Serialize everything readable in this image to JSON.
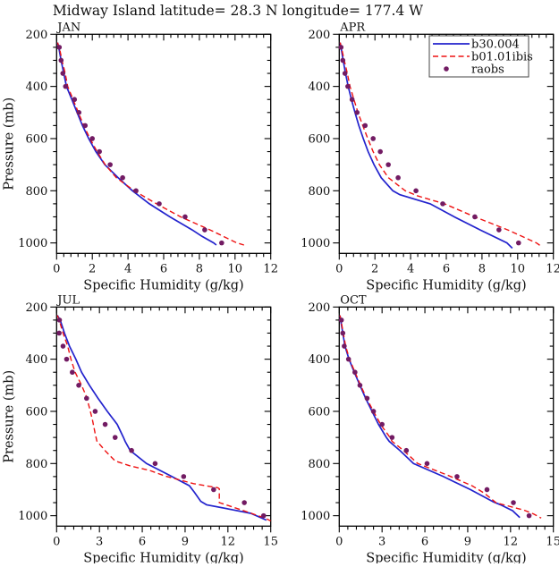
{
  "title": "Midway Island  latitude= 28.3 N longitude= 177.4 W",
  "colors": {
    "model_b30": "#2323cd",
    "model_b01": "#ee1212",
    "raobs": "#721b63",
    "frame": "#000000"
  },
  "legend": {
    "position": "top-right of APR panel",
    "entries": [
      {
        "label": "b30.004",
        "style": "solid-line",
        "color": "#2323cd"
      },
      {
        "label": "b01.01ibis",
        "style": "dashed-line",
        "color": "#ee1212"
      },
      {
        "label": "raobs",
        "style": "dot",
        "color": "#721b63"
      }
    ]
  },
  "chart_data": [
    {
      "type": "line",
      "panel": "JAN",
      "xlabel": "Specific Humidity (g/kg)",
      "ylabel": "Pressure (mb)",
      "xlim": [
        0,
        12
      ],
      "xticks": [
        0,
        2,
        4,
        6,
        8,
        10,
        12
      ],
      "x_minor_step": 0.4,
      "ylim": [
        200,
        1040
      ],
      "yticks": [
        200,
        400,
        600,
        800,
        1000
      ],
      "y_minor_step": 50,
      "y_axis_inverted": true,
      "grid": false,
      "series": [
        {
          "name": "b30.004",
          "type": "line",
          "style": "solid",
          "color": "#2323cd",
          "points": [
            [
              0.05,
              232
            ],
            [
              0.12,
              250
            ],
            [
              0.25,
              300
            ],
            [
              0.4,
              350
            ],
            [
              0.55,
              400
            ],
            [
              0.85,
              450
            ],
            [
              1.15,
              500
            ],
            [
              1.45,
              550
            ],
            [
              1.8,
              600
            ],
            [
              2.2,
              650
            ],
            [
              2.7,
              700
            ],
            [
              3.45,
              750
            ],
            [
              4.25,
              800
            ],
            [
              5.2,
              850
            ],
            [
              6.35,
              900
            ],
            [
              7.6,
              950
            ],
            [
              8.15,
              975
            ],
            [
              8.8,
              1000
            ],
            [
              8.95,
              1008
            ]
          ]
        },
        {
          "name": "b01.01ibis",
          "type": "line",
          "style": "dashed",
          "color": "#ee1212",
          "points": [
            [
              0.05,
              232
            ],
            [
              0.15,
              250
            ],
            [
              0.3,
              300
            ],
            [
              0.48,
              350
            ],
            [
              0.62,
              400
            ],
            [
              0.92,
              450
            ],
            [
              1.22,
              500
            ],
            [
              1.52,
              550
            ],
            [
              1.87,
              600
            ],
            [
              2.27,
              650
            ],
            [
              2.72,
              700
            ],
            [
              3.35,
              750
            ],
            [
              4.35,
              800
            ],
            [
              5.6,
              850
            ],
            [
              6.95,
              900
            ],
            [
              8.6,
              950
            ],
            [
              10.1,
              1000
            ],
            [
              10.5,
              1008
            ]
          ]
        },
        {
          "name": "raobs",
          "type": "scatter",
          "style": "dots",
          "color": "#721b63",
          "points": [
            [
              0.15,
              250
            ],
            [
              0.25,
              300
            ],
            [
              0.35,
              350
            ],
            [
              0.5,
              400
            ],
            [
              1.0,
              450
            ],
            [
              1.25,
              500
            ],
            [
              1.6,
              550
            ],
            [
              2.0,
              600
            ],
            [
              2.4,
              650
            ],
            [
              3.0,
              700
            ],
            [
              3.7,
              750
            ],
            [
              4.45,
              800
            ],
            [
              5.75,
              850
            ],
            [
              7.2,
              900
            ],
            [
              8.3,
              950
            ],
            [
              9.25,
              1000
            ]
          ]
        }
      ]
    },
    {
      "type": "line",
      "panel": "APR",
      "xlabel": "Specific Humidity (g/kg)",
      "ylabel": "",
      "xlim": [
        0,
        12
      ],
      "xticks": [
        0,
        2,
        4,
        6,
        8,
        10,
        12
      ],
      "x_minor_step": 0.4,
      "ylim": [
        200,
        1040
      ],
      "yticks": [
        200,
        400,
        600,
        800,
        1000
      ],
      "y_minor_step": 50,
      "y_axis_inverted": true,
      "grid": false,
      "has_legend": true,
      "series": [
        {
          "name": "b30.004",
          "type": "line",
          "style": "solid",
          "color": "#2323cd",
          "points": [
            [
              0.05,
              232
            ],
            [
              0.1,
              250
            ],
            [
              0.22,
              300
            ],
            [
              0.35,
              350
            ],
            [
              0.5,
              400
            ],
            [
              0.68,
              450
            ],
            [
              0.88,
              500
            ],
            [
              1.1,
              550
            ],
            [
              1.35,
              600
            ],
            [
              1.62,
              650
            ],
            [
              1.95,
              700
            ],
            [
              2.35,
              750
            ],
            [
              3.0,
              800
            ],
            [
              3.4,
              815
            ],
            [
              5.1,
              850
            ],
            [
              6.45,
              900
            ],
            [
              7.9,
              950
            ],
            [
              9.4,
              1000
            ],
            [
              9.7,
              1020
            ]
          ]
        },
        {
          "name": "b01.01ibis",
          "type": "line",
          "style": "dashed",
          "color": "#ee1212",
          "points": [
            [
              0.05,
              232
            ],
            [
              0.12,
              250
            ],
            [
              0.28,
              300
            ],
            [
              0.45,
              350
            ],
            [
              0.6,
              400
            ],
            [
              0.82,
              450
            ],
            [
              1.05,
              500
            ],
            [
              1.32,
              550
            ],
            [
              1.6,
              600
            ],
            [
              1.9,
              650
            ],
            [
              2.25,
              700
            ],
            [
              2.75,
              750
            ],
            [
              3.7,
              800
            ],
            [
              4.4,
              820
            ],
            [
              5.9,
              850
            ],
            [
              7.6,
              900
            ],
            [
              9.45,
              950
            ],
            [
              11.05,
              1000
            ],
            [
              11.3,
              1012
            ]
          ]
        },
        {
          "name": "raobs",
          "type": "scatter",
          "style": "dots",
          "color": "#721b63",
          "points": [
            [
              0.1,
              250
            ],
            [
              0.2,
              300
            ],
            [
              0.32,
              350
            ],
            [
              0.48,
              400
            ],
            [
              0.72,
              450
            ],
            [
              1.0,
              500
            ],
            [
              1.45,
              550
            ],
            [
              1.9,
              600
            ],
            [
              2.3,
              650
            ],
            [
              2.75,
              700
            ],
            [
              3.3,
              750
            ],
            [
              4.3,
              800
            ],
            [
              5.8,
              850
            ],
            [
              7.6,
              900
            ],
            [
              8.95,
              950
            ],
            [
              10.05,
              1000
            ]
          ]
        }
      ]
    },
    {
      "type": "line",
      "panel": "JUL",
      "xlabel": "Specific Humidity (g/kg)",
      "ylabel": "Pressure (mb)",
      "xlim": [
        0,
        15
      ],
      "xticks": [
        0,
        3,
        6,
        9,
        12,
        15
      ],
      "x_minor_step": 0.6,
      "ylim": [
        200,
        1040
      ],
      "yticks": [
        200,
        400,
        600,
        800,
        1000
      ],
      "y_minor_step": 50,
      "y_axis_inverted": true,
      "grid": false,
      "series": [
        {
          "name": "b30.004",
          "type": "line",
          "style": "solid",
          "color": "#2323cd",
          "points": [
            [
              0.05,
              232
            ],
            [
              0.25,
              250
            ],
            [
              0.55,
              300
            ],
            [
              0.9,
              350
            ],
            [
              1.35,
              400
            ],
            [
              1.75,
              450
            ],
            [
              2.3,
              500
            ],
            [
              2.9,
              550
            ],
            [
              3.55,
              600
            ],
            [
              4.25,
              650
            ],
            [
              4.68,
              700
            ],
            [
              4.8,
              715
            ],
            [
              5.15,
              750
            ],
            [
              6.3,
              800
            ],
            [
              7.9,
              845
            ],
            [
              9.3,
              885
            ],
            [
              9.65,
              910
            ],
            [
              10.1,
              945
            ],
            [
              10.5,
              958
            ],
            [
              12.3,
              977
            ],
            [
              13.6,
              991
            ],
            [
              14.7,
              1017
            ]
          ]
        },
        {
          "name": "b01.01ibis",
          "type": "line",
          "style": "dashed",
          "color": "#ee1212",
          "points": [
            [
              0.05,
              232
            ],
            [
              0.18,
              250
            ],
            [
              0.45,
              300
            ],
            [
              0.78,
              350
            ],
            [
              1.0,
              400
            ],
            [
              1.3,
              450
            ],
            [
              1.75,
              500
            ],
            [
              2.1,
              545
            ],
            [
              2.32,
              590
            ],
            [
              2.52,
              635
            ],
            [
              2.68,
              680
            ],
            [
              2.82,
              714
            ],
            [
              3.45,
              754
            ],
            [
              4.1,
              790
            ],
            [
              5.2,
              810
            ],
            [
              6.5,
              826
            ],
            [
              7.6,
              848
            ],
            [
              9.6,
              877
            ],
            [
              11.3,
              893
            ],
            [
              11.4,
              897
            ],
            [
              11.4,
              950
            ],
            [
              12.9,
              977
            ],
            [
              14.6,
              1009
            ],
            [
              15.0,
              1020
            ]
          ]
        },
        {
          "name": "raobs",
          "type": "scatter",
          "style": "dots",
          "color": "#721b63",
          "points": [
            [
              0.2,
              250
            ],
            [
              0.18,
              300
            ],
            [
              0.45,
              350
            ],
            [
              0.7,
              400
            ],
            [
              1.1,
              450
            ],
            [
              1.55,
              500
            ],
            [
              2.1,
              550
            ],
            [
              2.7,
              600
            ],
            [
              3.4,
              650
            ],
            [
              4.1,
              700
            ],
            [
              5.25,
              750
            ],
            [
              6.9,
              800
            ],
            [
              8.9,
              850
            ],
            [
              11.0,
              900
            ],
            [
              13.15,
              950
            ],
            [
              14.5,
              1000
            ]
          ]
        }
      ]
    },
    {
      "type": "line",
      "panel": "OCT",
      "xlabel": "Specific Humidity (g/kg)",
      "ylabel": "",
      "xlim": [
        0,
        15
      ],
      "xticks": [
        0,
        3,
        6,
        9,
        12,
        15
      ],
      "x_minor_step": 0.6,
      "ylim": [
        200,
        1040
      ],
      "yticks": [
        200,
        400,
        600,
        800,
        1000
      ],
      "y_minor_step": 50,
      "y_axis_inverted": true,
      "grid": false,
      "series": [
        {
          "name": "b30.004",
          "type": "line",
          "style": "solid",
          "color": "#2323cd",
          "points": [
            [
              0.05,
              232
            ],
            [
              0.1,
              250
            ],
            [
              0.25,
              300
            ],
            [
              0.4,
              350
            ],
            [
              0.68,
              400
            ],
            [
              1.05,
              450
            ],
            [
              1.45,
              500
            ],
            [
              1.85,
              550
            ],
            [
              2.3,
              600
            ],
            [
              2.75,
              650
            ],
            [
              3.3,
              700
            ],
            [
              3.5,
              715
            ],
            [
              4.25,
              750
            ],
            [
              5.2,
              800
            ],
            [
              7.3,
              850
            ],
            [
              9.2,
              900
            ],
            [
              10.8,
              947
            ],
            [
              11.3,
              958
            ],
            [
              12.15,
              981
            ],
            [
              12.65,
              1007
            ]
          ]
        },
        {
          "name": "b01.01ibis",
          "type": "line",
          "style": "dashed",
          "color": "#ee1212",
          "points": [
            [
              0.05,
              232
            ],
            [
              0.12,
              250
            ],
            [
              0.28,
              300
            ],
            [
              0.45,
              350
            ],
            [
              0.72,
              400
            ],
            [
              1.1,
              450
            ],
            [
              1.5,
              500
            ],
            [
              1.92,
              550
            ],
            [
              2.4,
              600
            ],
            [
              2.9,
              650
            ],
            [
              3.55,
              700
            ],
            [
              3.7,
              715
            ],
            [
              4.5,
              750
            ],
            [
              5.5,
              800
            ],
            [
              7.6,
              845
            ],
            [
              9.3,
              885
            ],
            [
              10.15,
              913
            ],
            [
              11.0,
              951
            ],
            [
              12.9,
              978
            ],
            [
              13.6,
              993
            ],
            [
              14.15,
              1009
            ]
          ]
        },
        {
          "name": "raobs",
          "type": "scatter",
          "style": "dots",
          "color": "#721b63",
          "points": [
            [
              0.15,
              250
            ],
            [
              0.25,
              300
            ],
            [
              0.35,
              350
            ],
            [
              0.65,
              400
            ],
            [
              1.1,
              450
            ],
            [
              1.45,
              500
            ],
            [
              1.95,
              550
            ],
            [
              2.4,
              600
            ],
            [
              3.0,
              650
            ],
            [
              3.7,
              700
            ],
            [
              4.7,
              750
            ],
            [
              6.15,
              800
            ],
            [
              8.25,
              850
            ],
            [
              10.35,
              900
            ],
            [
              12.2,
              950
            ],
            [
              13.3,
              1000
            ]
          ]
        }
      ]
    }
  ]
}
